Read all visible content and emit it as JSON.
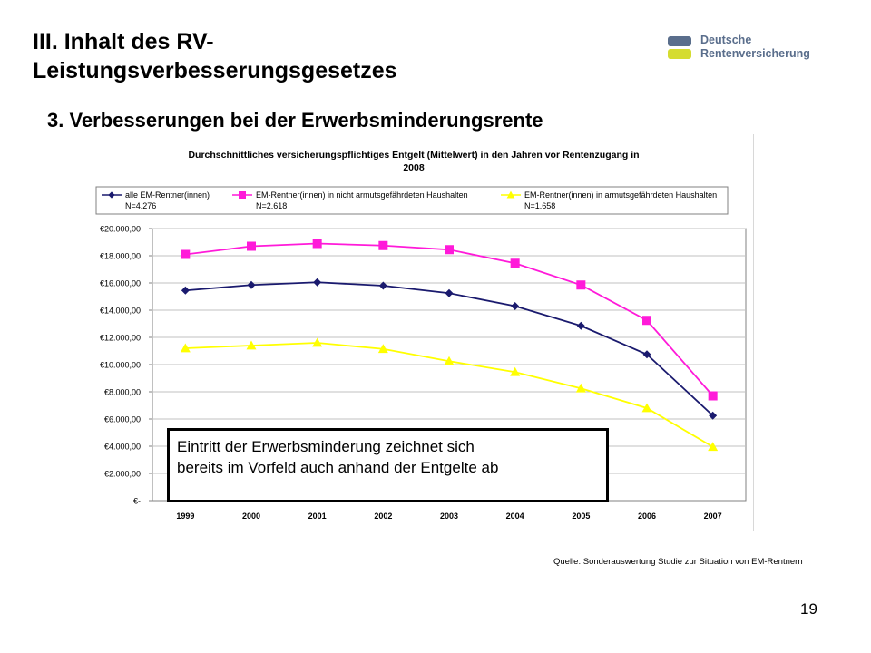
{
  "slide": {
    "title_line1": "III. Inhalt des RV-",
    "title_line2": "Leistungsverbesserungsgesetzes",
    "subtitle": "3. Verbesserungen bei der Erwerbsminderungsrente",
    "logo_line1": "Deutsche",
    "logo_line2": "Rentenversicherung",
    "callout_line1": "Eintritt der Erwerbsminderung zeichnet sich",
    "callout_line2": "bereits im Vorfeld auch anhand der Entgelte ab",
    "source": "Quelle: Sonderauswertung Studie zur Situation von EM-Rentnern",
    "page_number": "19",
    "colors": {
      "logo_blue": "#5a6e8c",
      "logo_yellow": "#d5dc30"
    }
  },
  "chart_data": {
    "type": "line",
    "title_line1": "Durchschnittliches versicherungspflichtiges Entgelt (Mittelwert) in den Jahren vor Rentenzugang in",
    "title_line2": "2008",
    "categories": [
      "1999",
      "2000",
      "2001",
      "2002",
      "2003",
      "2004",
      "2005",
      "2006",
      "2007"
    ],
    "series": [
      {
        "name": "alle EM-Rentner(innen)",
        "n_label": "N=4.276",
        "color": "#1a1a6e",
        "marker": "diamond",
        "values": [
          15450,
          15850,
          16050,
          15800,
          15250,
          14300,
          12850,
          10750,
          6250
        ]
      },
      {
        "name": "EM-Rentner(innen) in nicht armutsgefährdeten Haushalten",
        "n_label": "N=2.618",
        "color": "#ff1ad9",
        "marker": "square",
        "values": [
          18100,
          18700,
          18900,
          18750,
          18450,
          17450,
          15850,
          13250,
          7700
        ]
      },
      {
        "name": "EM-Rentner(innen) in armutsgefährdeten Haushalten",
        "n_label": "N=1.658",
        "color": "#ffff00",
        "marker": "triangle",
        "values": [
          11200,
          11400,
          11600,
          11150,
          10250,
          9450,
          8250,
          6800,
          3950
        ]
      }
    ],
    "yticks": [
      {
        "value": 0,
        "label": "€-"
      },
      {
        "value": 2000,
        "label": "€2.000,00"
      },
      {
        "value": 4000,
        "label": "€4.000,00"
      },
      {
        "value": 6000,
        "label": "€6.000,00"
      },
      {
        "value": 8000,
        "label": "€8.000,00"
      },
      {
        "value": 10000,
        "label": "€10.000,00"
      },
      {
        "value": 12000,
        "label": "€12.000,00"
      },
      {
        "value": 14000,
        "label": "€14.000,00"
      },
      {
        "value": 16000,
        "label": "€16.000,00"
      },
      {
        "value": 18000,
        "label": "€18.000,00"
      },
      {
        "value": 20000,
        "label": "€20.000,00"
      }
    ],
    "ylim": [
      0,
      20000
    ],
    "grid": true,
    "legend_position": "top",
    "plot_background": "#ffffff",
    "grid_color": "#c0c0c0"
  }
}
